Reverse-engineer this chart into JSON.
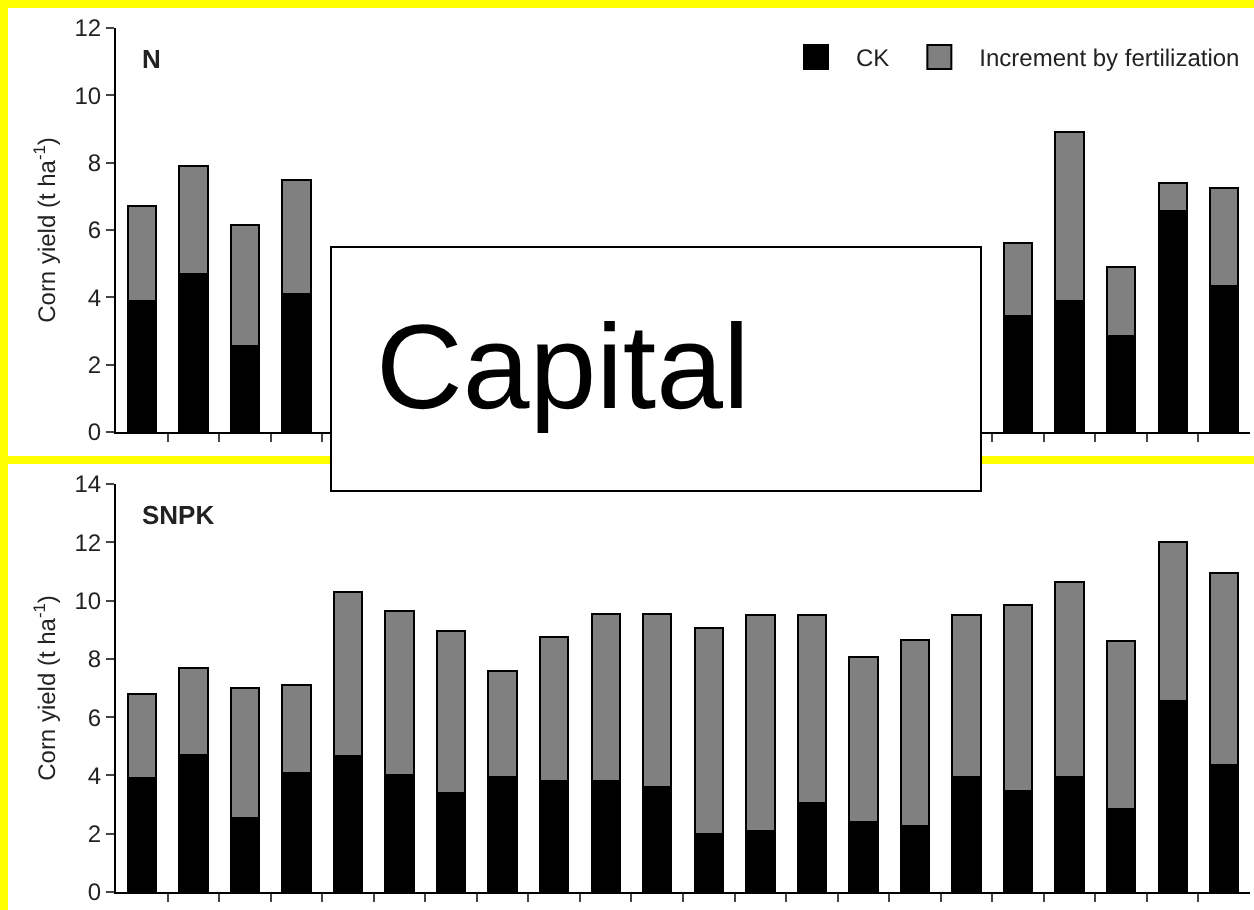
{
  "chart_data": [
    {
      "type": "bar",
      "title": "N",
      "ylabel": "Corn yield (t ha$^{-1}$)",
      "stacked": true,
      "legend": "top right",
      "grid": false,
      "categories": [
        null,
        null,
        null,
        null,
        null,
        null,
        null,
        null,
        null,
        null,
        null,
        null,
        null,
        null,
        null,
        null,
        null,
        null,
        null,
        null,
        null,
        null
      ],
      "ylim": [
        0,
        12
      ],
      "yticks": [
        0,
        2,
        4,
        6,
        8,
        10,
        12
      ],
      "annotations": [
        "Capital"
      ],
      "series": [
        {
          "name": "CK",
          "color": "#000000",
          "values": [
            3.9,
            4.7,
            2.55,
            4.1,
            null,
            null,
            null,
            null,
            null,
            null,
            null,
            null,
            null,
            null,
            null,
            null,
            null,
            3.45,
            3.9,
            2.85,
            6.55,
            4.35
          ]
        },
        {
          "name": "Increment by fertilization",
          "color": "#808080",
          "values": [
            2.8,
            3.2,
            3.6,
            3.4,
            null,
            null,
            null,
            null,
            null,
            null,
            null,
            null,
            null,
            null,
            null,
            null,
            null,
            2.15,
            5.0,
            2.05,
            0.85,
            2.9
          ]
        }
      ]
    },
    {
      "type": "bar",
      "title": "SNPK",
      "ylabel": "Corn yield (t ha$^{-1}$)",
      "stacked": true,
      "grid": false,
      "categories": [
        null,
        null,
        null,
        null,
        null,
        null,
        null,
        null,
        null,
        null,
        null,
        null,
        null,
        null,
        null,
        null,
        null,
        null,
        null,
        null,
        null,
        null
      ],
      "ylim": [
        0,
        14
      ],
      "yticks": [
        0,
        2,
        4,
        6,
        8,
        10,
        12,
        14
      ],
      "series": [
        {
          "color": "#000000",
          "values": [
            3.9,
            4.7,
            2.55,
            4.1,
            4.65,
            4.0,
            3.4,
            3.95,
            3.8,
            3.8,
            3.6,
            2.0,
            2.1,
            3.05,
            2.4,
            2.25,
            3.95,
            3.45,
            3.95,
            2.85,
            6.55,
            4.35
          ]
        },
        {
          "color": "#808080",
          "values": [
            2.9,
            3.0,
            4.45,
            3.0,
            5.65,
            5.65,
            5.55,
            3.65,
            4.95,
            5.75,
            5.95,
            7.05,
            7.4,
            6.45,
            5.65,
            6.4,
            5.55,
            6.4,
            6.7,
            5.75,
            5.45,
            6.6
          ]
        }
      ]
    }
  ]
}
